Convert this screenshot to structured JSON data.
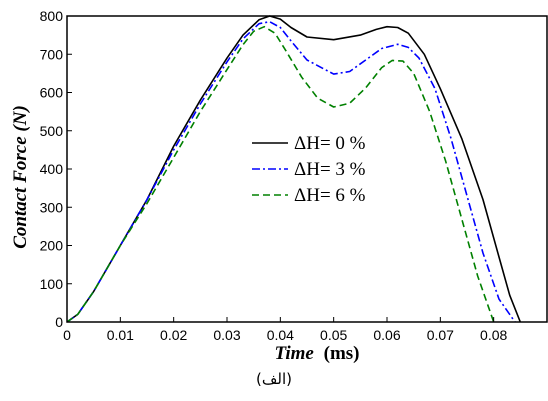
{
  "chart_data": {
    "type": "line",
    "xlabel_italic": "Time",
    "xlabel_unit": "(ms)",
    "ylabel": "Contact Force (N)",
    "xlim": [
      0,
      0.09
    ],
    "ylim": [
      0,
      800
    ],
    "xticks": [
      0,
      0.01,
      0.02,
      0.03,
      0.04,
      0.05,
      0.06,
      0.07,
      0.08
    ],
    "xtick_labels": [
      "0",
      "0.01",
      "0.02",
      "0.03",
      "0.04",
      "0.05",
      "0.06",
      "0.07",
      "0.08"
    ],
    "yticks": [
      0,
      100,
      200,
      300,
      400,
      500,
      600,
      700,
      800
    ],
    "ytick_labels": [
      "0",
      "100",
      "200",
      "300",
      "400",
      "500",
      "600",
      "700",
      "800"
    ],
    "grid": false,
    "legend_position": "center-right",
    "series": [
      {
        "name": "ΔH= 0 %",
        "color": "#000000",
        "style": "solid",
        "x": [
          0,
          0.002,
          0.005,
          0.01,
          0.015,
          0.02,
          0.025,
          0.03,
          0.033,
          0.036,
          0.038,
          0.04,
          0.042,
          0.045,
          0.05,
          0.055,
          0.058,
          0.06,
          0.062,
          0.064,
          0.067,
          0.07,
          0.074,
          0.078,
          0.081,
          0.083,
          0.085
        ],
        "y": [
          0,
          20,
          80,
          200,
          320,
          460,
          580,
          690,
          750,
          790,
          800,
          792,
          770,
          745,
          738,
          750,
          765,
          772,
          770,
          755,
          700,
          610,
          480,
          320,
          170,
          70,
          0
        ]
      },
      {
        "name": "ΔH= 3 %",
        "color": "#0000ff",
        "style": "dashdot",
        "x": [
          0,
          0.002,
          0.005,
          0.01,
          0.015,
          0.02,
          0.025,
          0.03,
          0.033,
          0.036,
          0.038,
          0.04,
          0.042,
          0.045,
          0.05,
          0.053,
          0.056,
          0.059,
          0.062,
          0.064,
          0.066,
          0.069,
          0.072,
          0.075,
          0.078,
          0.081,
          0.084
        ],
        "y": [
          0,
          20,
          80,
          200,
          320,
          450,
          570,
          680,
          740,
          780,
          785,
          770,
          735,
          685,
          648,
          655,
          685,
          715,
          726,
          718,
          690,
          610,
          480,
          330,
          180,
          60,
          0
        ]
      },
      {
        "name": "ΔH= 6 %",
        "color": "#008000",
        "style": "dashed",
        "x": [
          0,
          0.002,
          0.005,
          0.01,
          0.015,
          0.02,
          0.025,
          0.03,
          0.033,
          0.035,
          0.037,
          0.039,
          0.041,
          0.044,
          0.047,
          0.05,
          0.053,
          0.056,
          0.059,
          0.061,
          0.063,
          0.065,
          0.068,
          0.071,
          0.074,
          0.077,
          0.08
        ],
        "y": [
          0,
          20,
          80,
          200,
          310,
          430,
          550,
          660,
          725,
          760,
          772,
          755,
          710,
          640,
          585,
          562,
          572,
          612,
          665,
          684,
          682,
          650,
          550,
          420,
          270,
          120,
          0
        ]
      }
    ]
  },
  "caption": "(الف)"
}
